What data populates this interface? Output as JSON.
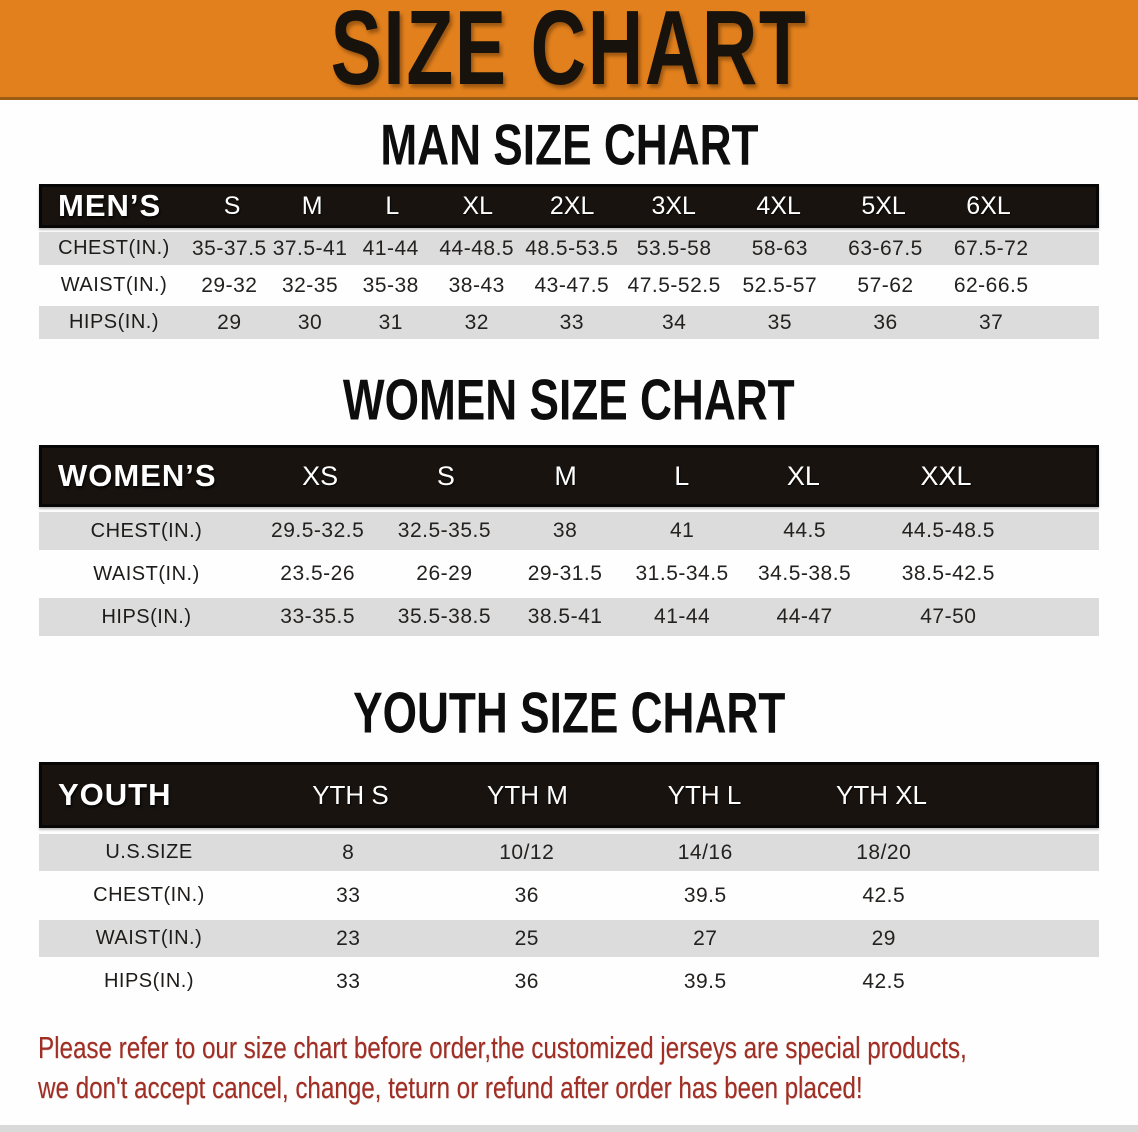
{
  "banner": {
    "title": "SIZE CHART"
  },
  "colors": {
    "banner_bg": "#E2801D",
    "header_bg": "#18130F",
    "row_gray": "#DCDCDC",
    "disclaimer_red": "#A02E24"
  },
  "disclaimer": {
    "line1": "Please refer to our size chart before order,the customized jerseys are special products,",
    "line2": "we don't accept cancel, change, teturn or refund after order has been placed!"
  },
  "chart_data": [
    {
      "type": "table",
      "id": "men",
      "title": "MAN SIZE CHART",
      "group_label": "MEN’S",
      "columns": [
        "S",
        "M",
        "L",
        "XL",
        "2XL",
        "3XL",
        "4XL",
        "5XL",
        "6XL"
      ],
      "rows": [
        {
          "label": "CHEST(IN.)",
          "values": [
            "35-37.5",
            "37.5-41",
            "41-44",
            "44-48.5",
            "48.5-53.5",
            "53.5-58",
            "58-63",
            "63-67.5",
            "67.5-72"
          ]
        },
        {
          "label": "WAIST(IN.)",
          "values": [
            "29-32",
            "32-35",
            "35-38",
            "38-43",
            "43-47.5",
            "47.5-52.5",
            "52.5-57",
            "57-62",
            "62-66.5"
          ]
        },
        {
          "label": "HIPS(IN.)",
          "values": [
            "29",
            "30",
            "31",
            "32",
            "33",
            "34",
            "35",
            "36",
            "37"
          ]
        }
      ]
    },
    {
      "type": "table",
      "id": "women",
      "title": "WOMEN SIZE CHART",
      "group_label": "WOMEN’S",
      "columns": [
        "XS",
        "S",
        "M",
        "L",
        "XL",
        "XXL"
      ],
      "rows": [
        {
          "label": "CHEST(IN.)",
          "values": [
            "29.5-32.5",
            "32.5-35.5",
            "38",
            "41",
            "44.5",
            "44.5-48.5"
          ]
        },
        {
          "label": "WAIST(IN.)",
          "values": [
            "23.5-26",
            "26-29",
            "29-31.5",
            "31.5-34.5",
            "34.5-38.5",
            "38.5-42.5"
          ]
        },
        {
          "label": "HIPS(IN.)",
          "values": [
            "33-35.5",
            "35.5-38.5",
            "38.5-41",
            "41-44",
            "44-47",
            "47-50"
          ]
        }
      ]
    },
    {
      "type": "table",
      "id": "youth",
      "title": "YOUTH SIZE CHART",
      "group_label": "YOUTH",
      "columns": [
        "YTH S",
        "YTH M",
        "YTH L",
        "YTH XL"
      ],
      "rows": [
        {
          "label": "U.S.SIZE",
          "values": [
            "8",
            "10/12",
            "14/16",
            "18/20"
          ]
        },
        {
          "label": "CHEST(IN.)",
          "values": [
            "33",
            "36",
            "39.5",
            "42.5"
          ]
        },
        {
          "label": "WAIST(IN.)",
          "values": [
            "23",
            "25",
            "27",
            "29"
          ]
        },
        {
          "label": "HIPS(IN.)",
          "values": [
            "33",
            "36",
            "39.5",
            "42.5"
          ]
        }
      ]
    }
  ]
}
